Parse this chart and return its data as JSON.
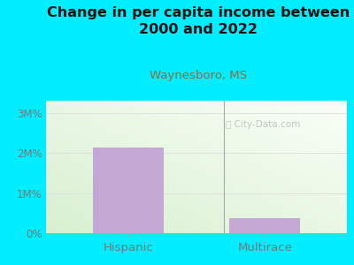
{
  "title": "Change in per capita income between\n2000 and 2022",
  "subtitle": "Waynesboro, MS",
  "categories": [
    "Hispanic",
    "Multirace"
  ],
  "values": [
    2.13,
    0.38
  ],
  "bar_color": "#c4a8d4",
  "bg_color": "#00eeff",
  "title_color": "#111111",
  "subtitle_color": "#996633",
  "tick_label_color": "#777777",
  "yticks": [
    0,
    1,
    2,
    3
  ],
  "ytick_labels": [
    "0%",
    "1M%",
    "2M%",
    "3M%"
  ],
  "ylim": [
    0,
    3.3
  ],
  "watermark": "ⓘ City-Data.com",
  "watermark_color": "#bbbbbb",
  "grid_color": "#dddddd",
  "plot_bg_color_tl": "#f0f8e8",
  "plot_bg_color_br": "#fafffe"
}
